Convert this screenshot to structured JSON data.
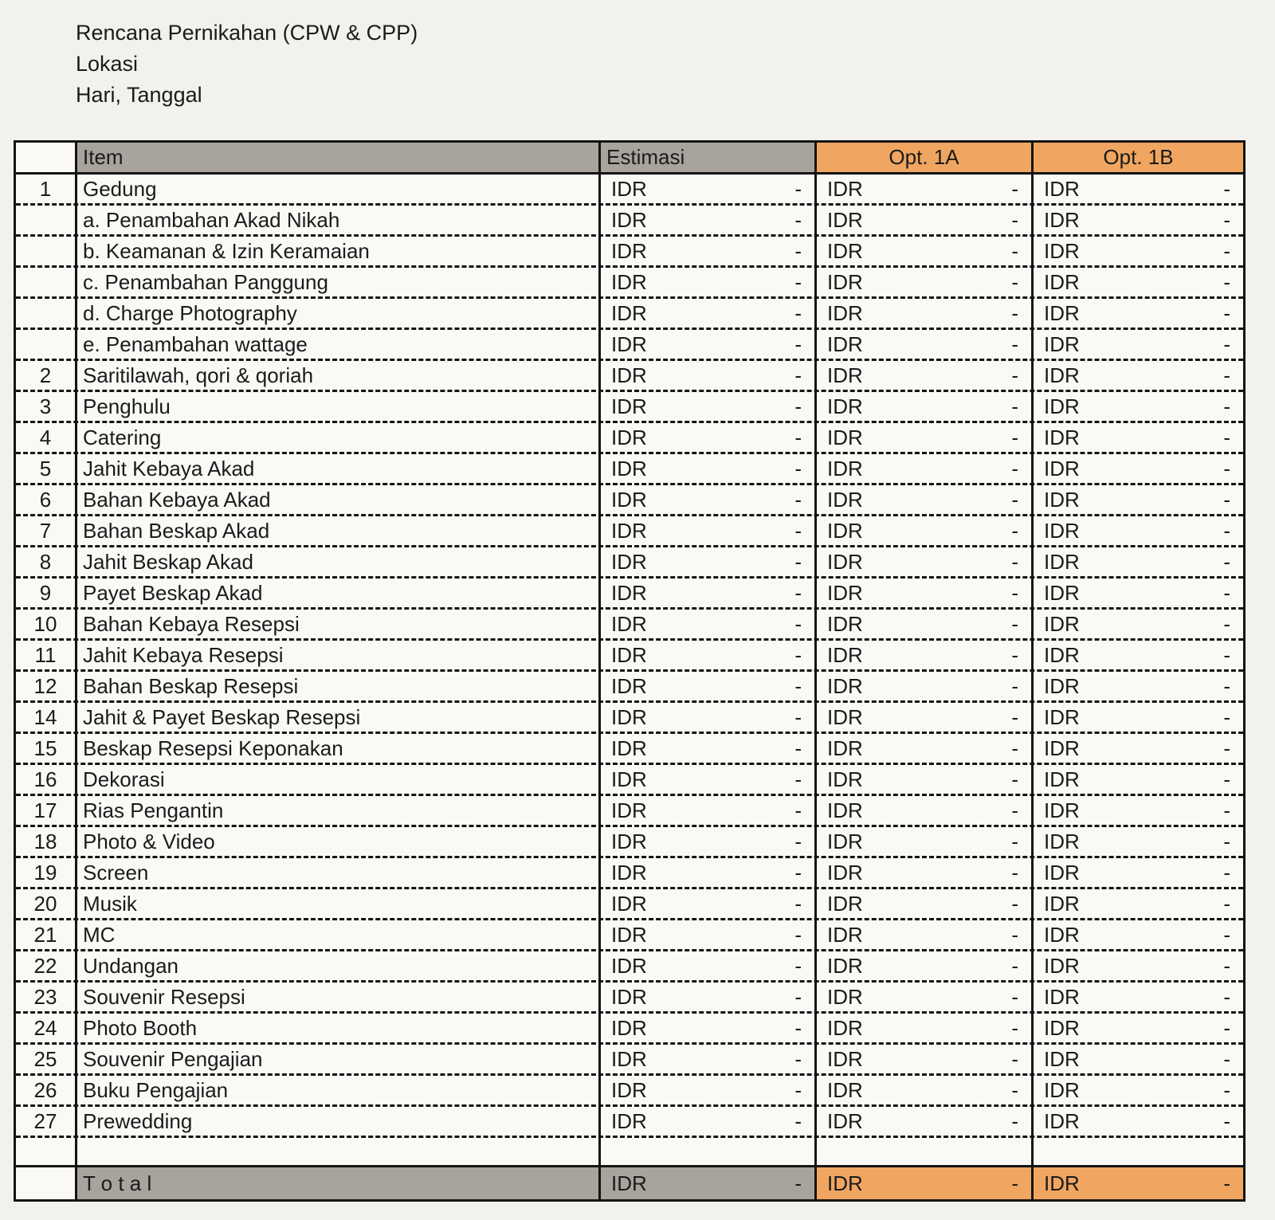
{
  "header": {
    "title": "Rencana Pernikahan (CPW & CPP)",
    "location": "Lokasi",
    "date": "Hari, Tanggal"
  },
  "table": {
    "columns": {
      "number": "",
      "item": "Item",
      "estimasi": "Estimasi",
      "opt1a": "Opt. 1A",
      "opt1b": "Opt. 1B"
    },
    "currency": "IDR",
    "rows": [
      {
        "no": "1",
        "item": "Gedung",
        "estimasi": "-",
        "opt1a": "-",
        "opt1b": "-"
      },
      {
        "no": "",
        "item": "a. Penambahan Akad Nikah",
        "estimasi": "-",
        "opt1a": "-",
        "opt1b": "-"
      },
      {
        "no": "",
        "item": "b. Keamanan & Izin Keramaian",
        "estimasi": "-",
        "opt1a": "-",
        "opt1b": "-"
      },
      {
        "no": "",
        "item": "c. Penambahan Panggung",
        "estimasi": "-",
        "opt1a": "-",
        "opt1b": "-"
      },
      {
        "no": "",
        "item": "d. Charge Photography",
        "estimasi": "-",
        "opt1a": "-",
        "opt1b": "-"
      },
      {
        "no": "",
        "item": "e. Penambahan wattage",
        "estimasi": "-",
        "opt1a": "-",
        "opt1b": "-"
      },
      {
        "no": "2",
        "item": "Saritilawah, qori & qoriah",
        "estimasi": "-",
        "opt1a": "-",
        "opt1b": "-"
      },
      {
        "no": "3",
        "item": "Penghulu",
        "estimasi": "-",
        "opt1a": "-",
        "opt1b": "-"
      },
      {
        "no": "4",
        "item": "Catering",
        "estimasi": "-",
        "opt1a": "-",
        "opt1b": "-"
      },
      {
        "no": "5",
        "item": "Jahit Kebaya Akad",
        "estimasi": "-",
        "opt1a": "-",
        "opt1b": "-"
      },
      {
        "no": "6",
        "item": "Bahan Kebaya Akad",
        "estimasi": "-",
        "opt1a": "-",
        "opt1b": "-"
      },
      {
        "no": "7",
        "item": "Bahan Beskap Akad",
        "estimasi": "-",
        "opt1a": "-",
        "opt1b": "-"
      },
      {
        "no": "8",
        "item": "Jahit Beskap Akad",
        "estimasi": "-",
        "opt1a": "-",
        "opt1b": "-"
      },
      {
        "no": "9",
        "item": "Payet Beskap Akad",
        "estimasi": "-",
        "opt1a": "-",
        "opt1b": "-"
      },
      {
        "no": "10",
        "item": "Bahan Kebaya Resepsi",
        "estimasi": "-",
        "opt1a": "-",
        "opt1b": "-"
      },
      {
        "no": "11",
        "item": "Jahit Kebaya Resepsi",
        "estimasi": "-",
        "opt1a": "-",
        "opt1b": "-"
      },
      {
        "no": "12",
        "item": "Bahan Beskap Resepsi",
        "estimasi": "-",
        "opt1a": "-",
        "opt1b": "-"
      },
      {
        "no": "14",
        "item": "Jahit & Payet Beskap Resepsi",
        "estimasi": "-",
        "opt1a": "-",
        "opt1b": "-"
      },
      {
        "no": "15",
        "item": "Beskap Resepsi Keponakan",
        "estimasi": "-",
        "opt1a": "-",
        "opt1b": "-"
      },
      {
        "no": "16",
        "item": "Dekorasi",
        "estimasi": "-",
        "opt1a": "-",
        "opt1b": "-"
      },
      {
        "no": "17",
        "item": "Rias Pengantin",
        "estimasi": "-",
        "opt1a": "-",
        "opt1b": "-"
      },
      {
        "no": "18",
        "item": "Photo & Video",
        "estimasi": "-",
        "opt1a": "-",
        "opt1b": "-"
      },
      {
        "no": "19",
        "item": "Screen",
        "estimasi": "-",
        "opt1a": "-",
        "opt1b": "-"
      },
      {
        "no": "20",
        "item": "Musik",
        "estimasi": "-",
        "opt1a": "-",
        "opt1b": "-"
      },
      {
        "no": "21",
        "item": "MC",
        "estimasi": "-",
        "opt1a": "-",
        "opt1b": "-"
      },
      {
        "no": "22",
        "item": "Undangan",
        "estimasi": "-",
        "opt1a": "-",
        "opt1b": "-"
      },
      {
        "no": "23",
        "item": "Souvenir Resepsi",
        "estimasi": "-",
        "opt1a": "-",
        "opt1b": "-"
      },
      {
        "no": "24",
        "item": "Photo Booth",
        "estimasi": "-",
        "opt1a": "-",
        "opt1b": "-"
      },
      {
        "no": "25",
        "item": "Souvenir Pengajian",
        "estimasi": "-",
        "opt1a": "-",
        "opt1b": "-"
      },
      {
        "no": "26",
        "item": "Buku Pengajian",
        "estimasi": "-",
        "opt1a": "-",
        "opt1b": "-"
      },
      {
        "no": "27",
        "item": "Prewedding",
        "estimasi": "-",
        "opt1a": "-",
        "opt1b": "-"
      }
    ],
    "total": {
      "label": "T o t a l",
      "estimasi": "-",
      "opt1a": "-",
      "opt1b": "-"
    }
  },
  "colors": {
    "header_gray": "#a8a39c",
    "accent_orange": "#f0a660"
  }
}
